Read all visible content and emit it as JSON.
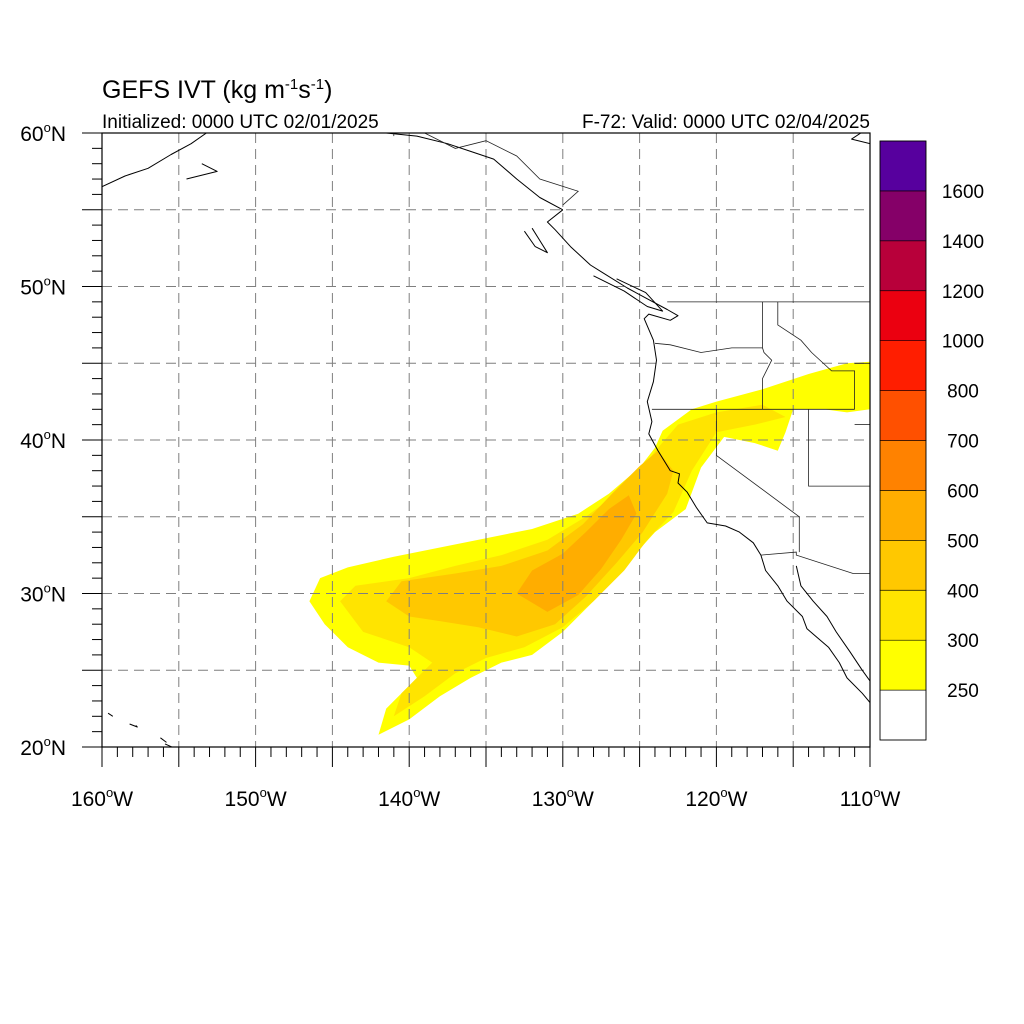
{
  "title": {
    "main": "GEFS IVT",
    "unit_open": " (kg m",
    "exp1": "-1",
    "unit_mid": "s",
    "exp2": "-1",
    "unit_close": ")"
  },
  "initialized": "Initialized: 0000 UTC 02/01/2025",
  "valid": "F-72: Valid: 0000 UTC 02/04/2025",
  "map": {
    "projection": "cylindrical equidistant",
    "lon_range": [
      -160,
      -110
    ],
    "lat_range": [
      20,
      60
    ],
    "grid": "dashed gray every 5 degrees",
    "lat_labels": [
      {
        "value": 60,
        "text": "60",
        "suffix": "N"
      },
      {
        "value": 50,
        "text": "50",
        "suffix": "N"
      },
      {
        "value": 40,
        "text": "40",
        "suffix": "N"
      },
      {
        "value": 30,
        "text": "30",
        "suffix": "N"
      },
      {
        "value": 20,
        "text": "20",
        "suffix": "N"
      }
    ],
    "lon_labels": [
      {
        "value": -160,
        "text": "160",
        "suffix": "W"
      },
      {
        "value": -150,
        "text": "150",
        "suffix": "W"
      },
      {
        "value": -140,
        "text": "140",
        "suffix": "W"
      },
      {
        "value": -130,
        "text": "130",
        "suffix": "W"
      },
      {
        "value": -120,
        "text": "120",
        "suffix": "W"
      },
      {
        "value": -110,
        "text": "110",
        "suffix": "W"
      }
    ]
  },
  "colorbar": {
    "colors": [
      "#ffffff",
      "#ffff00",
      "#ffe400",
      "#ffc800",
      "#ffad00",
      "#ff8200",
      "#ff5000",
      "#ff1e00",
      "#eb0010",
      "#b8003a",
      "#850068",
      "#57009e"
    ],
    "labels": [
      "250",
      "300",
      "400",
      "500",
      "600",
      "700",
      "800",
      "1000",
      "1200",
      "1400",
      "1600"
    ]
  },
  "ivt_field": {
    "description": "atmospheric river plume, IVT in kg m-1 s-1",
    "levels": [
      {
        "threshold": 250,
        "color": "#ffff00",
        "polygons": [
          [
            [
              -146.5,
              29.5
            ],
            [
              -145.8,
              31.0
            ],
            [
              -144.0,
              31.7
            ],
            [
              -141.0,
              32.4
            ],
            [
              -138.0,
              33.0
            ],
            [
              -135.0,
              33.6
            ],
            [
              -132.0,
              34.2
            ],
            [
              -129.0,
              35.2
            ],
            [
              -127.0,
              36.5
            ],
            [
              -125.0,
              38.2
            ],
            [
              -124.0,
              39.5
            ],
            [
              -123.5,
              40.6
            ],
            [
              -121.6,
              42.0
            ],
            [
              -120.0,
              42.5
            ],
            [
              -117.0,
              43.3
            ],
            [
              -114.0,
              44.3
            ],
            [
              -111.5,
              45.0
            ],
            [
              -110.0,
              45.1
            ],
            [
              -110.0,
              42.0
            ],
            [
              -111.5,
              41.8
            ],
            [
              -113.0,
              42.0
            ],
            [
              -115.0,
              42.0
            ],
            [
              -115.5,
              40.5
            ],
            [
              -116.0,
              39.3
            ],
            [
              -117.5,
              39.8
            ],
            [
              -119.5,
              40.2
            ],
            [
              -121.0,
              38.2
            ],
            [
              -122.0,
              35.5
            ],
            [
              -124.0,
              34.0
            ],
            [
              -125.8,
              32.0
            ],
            [
              -127.5,
              30.0
            ],
            [
              -130.0,
              27.5
            ],
            [
              -132.0,
              26.0
            ],
            [
              -134.0,
              25.5
            ],
            [
              -136.0,
              24.5
            ],
            [
              -138.0,
              23.3
            ],
            [
              -140.0,
              21.8
            ],
            [
              -142.0,
              20.8
            ],
            [
              -141.5,
              22.5
            ],
            [
              -139.5,
              24.5
            ],
            [
              -140.0,
              25.3
            ],
            [
              -142.0,
              25.5
            ],
            [
              -144.0,
              26.5
            ],
            [
              -145.5,
              28.0
            ]
          ]
        ]
      },
      {
        "threshold": 300,
        "color": "#ffe400",
        "polygons": [
          [
            [
              -144.5,
              29.5
            ],
            [
              -143.5,
              30.5
            ],
            [
              -140.0,
              31.0
            ],
            [
              -137.0,
              31.8
            ],
            [
              -134.0,
              32.5
            ],
            [
              -131.0,
              33.5
            ],
            [
              -128.5,
              35.0
            ],
            [
              -126.5,
              36.5
            ],
            [
              -125.0,
              38.0
            ],
            [
              -123.8,
              39.5
            ],
            [
              -122.5,
              41.0
            ],
            [
              -120.0,
              41.8
            ],
            [
              -117.0,
              42.3
            ],
            [
              -115.5,
              41.5
            ],
            [
              -117.5,
              41.0
            ],
            [
              -120.0,
              40.5
            ],
            [
              -121.6,
              38.0
            ],
            [
              -122.8,
              35.3
            ],
            [
              -124.5,
              33.5
            ],
            [
              -126.0,
              31.5
            ],
            [
              -128.0,
              29.5
            ],
            [
              -130.0,
              27.8
            ],
            [
              -132.5,
              26.5
            ],
            [
              -135.0,
              25.8
            ],
            [
              -137.0,
              24.8
            ],
            [
              -139.0,
              23.3
            ],
            [
              -141.0,
              22.0
            ],
            [
              -140.5,
              23.5
            ],
            [
              -138.5,
              25.5
            ],
            [
              -140.0,
              26.5
            ],
            [
              -143.0,
              27.5
            ]
          ]
        ]
      },
      {
        "threshold": 400,
        "color": "#ffc800",
        "polygons": [
          [
            [
              -141.5,
              29.5
            ],
            [
              -140.5,
              30.8
            ],
            [
              -137.0,
              31.3
            ],
            [
              -134.0,
              31.8
            ],
            [
              -131.0,
              32.8
            ],
            [
              -128.7,
              34.5
            ],
            [
              -126.8,
              36.5
            ],
            [
              -125.0,
              38.3
            ],
            [
              -123.8,
              39.3
            ],
            [
              -122.8,
              38.0
            ],
            [
              -123.2,
              36.5
            ],
            [
              -124.8,
              34.0
            ],
            [
              -126.5,
              32.0
            ],
            [
              -128.5,
              29.8
            ],
            [
              -130.5,
              28.0
            ],
            [
              -133.0,
              27.2
            ],
            [
              -135.5,
              27.8
            ],
            [
              -138.0,
              28.2
            ],
            [
              -140.0,
              28.5
            ]
          ]
        ]
      },
      {
        "threshold": 500,
        "color": "#ffad00",
        "polygons": [
          [
            [
              -133.0,
              30.0
            ],
            [
              -132.0,
              31.5
            ],
            [
              -130.0,
              32.6
            ],
            [
              -128.5,
              34.0
            ],
            [
              -127.0,
              35.5
            ],
            [
              -125.7,
              36.4
            ],
            [
              -125.2,
              35.2
            ],
            [
              -126.2,
              33.5
            ],
            [
              -127.5,
              31.6
            ],
            [
              -129.0,
              29.9
            ],
            [
              -131.0,
              28.8
            ]
          ]
        ]
      }
    ]
  },
  "coastlines": [
    [
      [
        -130.0,
        55.0
      ],
      [
        -131.0,
        54.2
      ],
      [
        -130.5,
        53.7
      ],
      [
        -129.5,
        52.6
      ],
      [
        -128.2,
        51.4
      ],
      [
        -127.4,
        50.9
      ],
      [
        -125.8,
        49.9
      ],
      [
        -124.5,
        49.2
      ],
      [
        -123.2,
        48.5
      ],
      [
        -122.5,
        48.1
      ],
      [
        -123.0,
        47.8
      ],
      [
        -124.4,
        48.2
      ],
      [
        -124.7,
        47.9
      ],
      [
        -124.1,
        46.5
      ],
      [
        -123.9,
        45.2
      ],
      [
        -124.1,
        43.8
      ],
      [
        -124.5,
        42.5
      ],
      [
        -124.2,
        41.2
      ],
      [
        -124.4,
        40.4
      ],
      [
        -123.8,
        39.3
      ],
      [
        -123.0,
        38.0
      ],
      [
        -122.4,
        37.8
      ],
      [
        -122.5,
        37.2
      ],
      [
        -121.9,
        36.6
      ],
      [
        -121.3,
        35.6
      ],
      [
        -120.6,
        34.6
      ],
      [
        -119.4,
        34.4
      ],
      [
        -118.5,
        34.0
      ],
      [
        -117.6,
        33.3
      ],
      [
        -117.1,
        32.5
      ],
      [
        -116.8,
        31.5
      ],
      [
        -116.0,
        30.5
      ],
      [
        -115.4,
        29.5
      ],
      [
        -114.4,
        28.5
      ],
      [
        -114.1,
        27.7
      ],
      [
        -112.7,
        26.5
      ],
      [
        -112.0,
        25.5
      ],
      [
        -111.5,
        24.5
      ],
      [
        -110.5,
        23.5
      ],
      [
        -110.0,
        22.9
      ]
    ],
    [
      [
        -114.8,
        31.8
      ],
      [
        -114.5,
        30.5
      ],
      [
        -113.7,
        29.5
      ],
      [
        -112.8,
        28.5
      ],
      [
        -112.2,
        27.5
      ],
      [
        -111.3,
        26.2
      ],
      [
        -110.5,
        25.0
      ],
      [
        -110.0,
        24.3
      ]
    ],
    [
      [
        -130.0,
        55.0
      ],
      [
        -131.5,
        55.8
      ],
      [
        -133.0,
        57.0
      ],
      [
        -134.5,
        58.3
      ],
      [
        -136.0,
        58.8
      ],
      [
        -137.5,
        59.3
      ],
      [
        -139.5,
        59.8
      ],
      [
        -141.5,
        60.0
      ]
    ],
    [
      [
        -132.0,
        53.8
      ],
      [
        -131.5,
        53.0
      ],
      [
        -131.0,
        52.2
      ],
      [
        -131.8,
        52.6
      ],
      [
        -132.5,
        53.6
      ]
    ],
    [
      [
        -128.0,
        50.7
      ],
      [
        -126.0,
        49.7
      ],
      [
        -124.5,
        48.7
      ],
      [
        -123.5,
        48.4
      ],
      [
        -124.6,
        49.6
      ],
      [
        -126.5,
        50.5
      ]
    ],
    [
      [
        -160.0,
        56.5
      ],
      [
        -158.5,
        57.2
      ],
      [
        -157.0,
        57.7
      ],
      [
        -155.5,
        58.6
      ],
      [
        -154.2,
        59.3
      ],
      [
        -153.2,
        60.0
      ]
    ],
    [
      [
        -154.5,
        57.0
      ],
      [
        -152.5,
        57.5
      ],
      [
        -153.5,
        58.0
      ]
    ],
    [
      [
        -110.0,
        59.3
      ],
      [
        -111.2,
        59.6
      ],
      [
        -110.6,
        60.0
      ]
    ],
    [
      [
        -156.2,
        20.6
      ],
      [
        -155.8,
        20.3
      ]
    ],
    [
      [
        -157.8,
        21.4
      ],
      [
        -157.7,
        21.3
      ],
      [
        -158.2,
        21.5
      ]
    ],
    [
      [
        -159.6,
        22.2
      ],
      [
        -159.3,
        22.0
      ]
    ],
    [
      [
        -155.9,
        20.2
      ],
      [
        -155.0,
        19.8
      ],
      [
        -155.6,
        19.1
      ]
    ]
  ],
  "borders": [
    [
      [
        -123.2,
        49.0
      ],
      [
        -110.0,
        49.0
      ]
    ],
    [
      [
        -130.0,
        55.3
      ],
      [
        -129.0,
        56.2
      ],
      [
        -131.5,
        57.0
      ],
      [
        -133.0,
        58.5
      ],
      [
        -135.0,
        59.5
      ],
      [
        -137.0,
        59.0
      ],
      [
        -139.0,
        60.0
      ]
    ],
    [
      [
        -141.0,
        60.0
      ],
      [
        -141.0,
        59.8
      ]
    ],
    [
      [
        -117.1,
        32.5
      ],
      [
        -114.8,
        32.7
      ],
      [
        -114.8,
        32.5
      ],
      [
        -111.1,
        31.3
      ],
      [
        -110.0,
        31.3
      ]
    ],
    [
      [
        -124.2,
        42.0
      ],
      [
        -111.0,
        42.0
      ]
    ],
    [
      [
        -120.0,
        42.0
      ],
      [
        -120.0,
        39.0
      ],
      [
        -114.6,
        35.0
      ]
    ],
    [
      [
        -114.6,
        35.0
      ],
      [
        -114.6,
        32.7
      ]
    ],
    [
      [
        -114.0,
        42.0
      ],
      [
        -114.0,
        37.0
      ],
      [
        -110.0,
        37.0
      ]
    ],
    [
      [
        -117.0,
        49.0
      ],
      [
        -117.0,
        46.0
      ],
      [
        -116.9,
        45.7
      ],
      [
        -116.4,
        45.2
      ],
      [
        -117.0,
        44.0
      ],
      [
        -117.0,
        42.0
      ]
    ],
    [
      [
        -124.0,
        46.3
      ],
      [
        -123.0,
        46.2
      ],
      [
        -121.0,
        45.7
      ],
      [
        -119.0,
        46.0
      ],
      [
        -117.0,
        46.0
      ]
    ],
    [
      [
        -116.0,
        49.0
      ],
      [
        -116.0,
        47.5
      ],
      [
        -114.5,
        46.5
      ],
      [
        -113.8,
        45.7
      ],
      [
        -112.5,
        44.5
      ],
      [
        -111.0,
        44.5
      ],
      [
        -111.0,
        42.0
      ]
    ],
    [
      [
        -111.0,
        45.0
      ],
      [
        -110.0,
        45.0
      ]
    ],
    [
      [
        -110.0,
        41.0
      ],
      [
        -111.0,
        41.0
      ]
    ]
  ]
}
